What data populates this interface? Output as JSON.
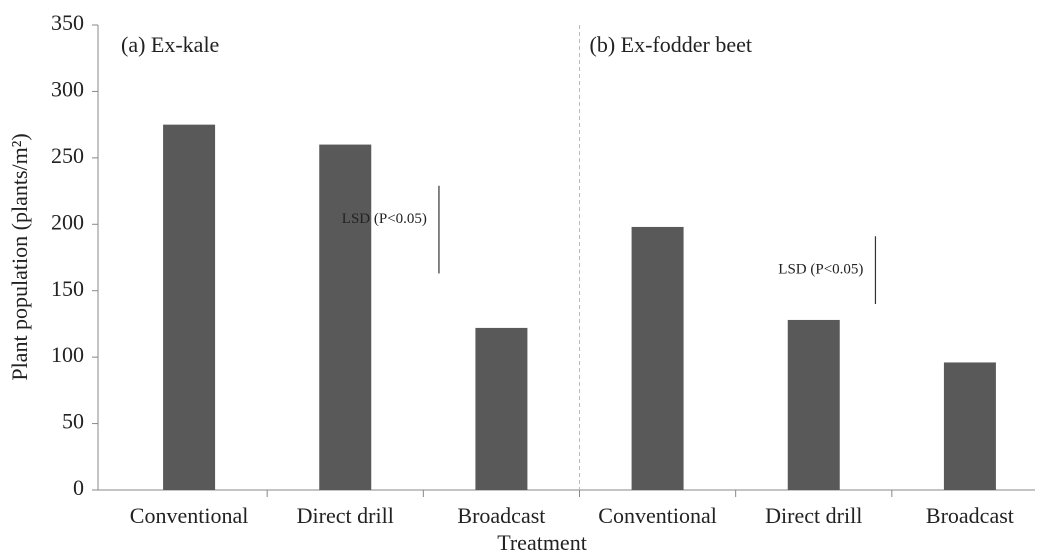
{
  "chart_data": {
    "type": "bar",
    "y_label": "Plant population (plants/m²)",
    "x_label": "Treatment",
    "color": "#595959",
    "ylim": [
      0,
      350
    ],
    "yticks": [
      0,
      50,
      100,
      150,
      200,
      250,
      300,
      350
    ],
    "panels": [
      {
        "title": "(a) Ex-kale",
        "categories": [
          "Conventional",
          "Direct drill",
          "Broadcast"
        ],
        "values": [
          275,
          260,
          122
        ],
        "lsd": {
          "label": "LSD (P<0.05)",
          "top": 229,
          "bottom": 163
        }
      },
      {
        "title": "(b) Ex-fodder beet",
        "categories": [
          "Conventional",
          "Direct drill",
          "Broadcast"
        ],
        "values": [
          198,
          128,
          96
        ],
        "lsd": {
          "label": "LSD (P<0.05)",
          "top": 191,
          "bottom": 140
        }
      }
    ]
  }
}
